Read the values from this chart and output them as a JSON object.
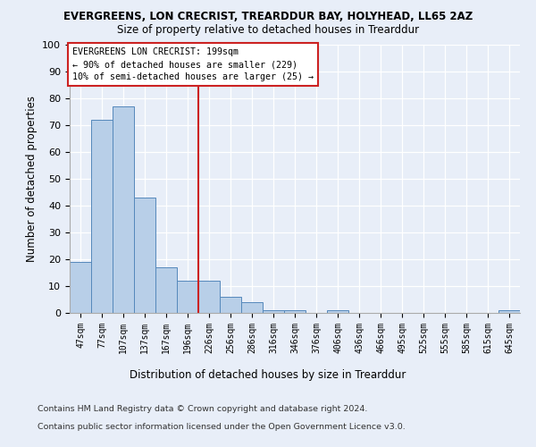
{
  "title_line1": "EVERGREENS, LON CRECRIST, TREARDDUR BAY, HOLYHEAD, LL65 2AZ",
  "title_line2": "Size of property relative to detached houses in Trearddur",
  "xlabel": "Distribution of detached houses by size in Trearddur",
  "ylabel": "Number of detached properties",
  "categories": [
    "47sqm",
    "77sqm",
    "107sqm",
    "137sqm",
    "167sqm",
    "196sqm",
    "226sqm",
    "256sqm",
    "286sqm",
    "316sqm",
    "346sqm",
    "376sqm",
    "406sqm",
    "436sqm",
    "466sqm",
    "495sqm",
    "525sqm",
    "555sqm",
    "585sqm",
    "615sqm",
    "645sqm"
  ],
  "values": [
    19,
    72,
    77,
    43,
    17,
    12,
    12,
    6,
    4,
    1,
    1,
    0,
    1,
    0,
    0,
    0,
    0,
    0,
    0,
    0,
    1
  ],
  "bar_color": "#b8cfe8",
  "bar_edge_color": "#5588bb",
  "vline_color": "#cc2222",
  "annotation_text": "EVERGREENS LON CRECRIST: 199sqm\n← 90% of detached houses are smaller (229)\n10% of semi-detached houses are larger (25) →",
  "annotation_box_color": "#ffffff",
  "annotation_box_edge": "#cc2222",
  "ylim": [
    0,
    100
  ],
  "yticks": [
    0,
    10,
    20,
    30,
    40,
    50,
    60,
    70,
    80,
    90,
    100
  ],
  "footer_line1": "Contains HM Land Registry data © Crown copyright and database right 2024.",
  "footer_line2": "Contains public sector information licensed under the Open Government Licence v3.0.",
  "background_color": "#e8eef8",
  "plot_background_color": "#e8eef8"
}
